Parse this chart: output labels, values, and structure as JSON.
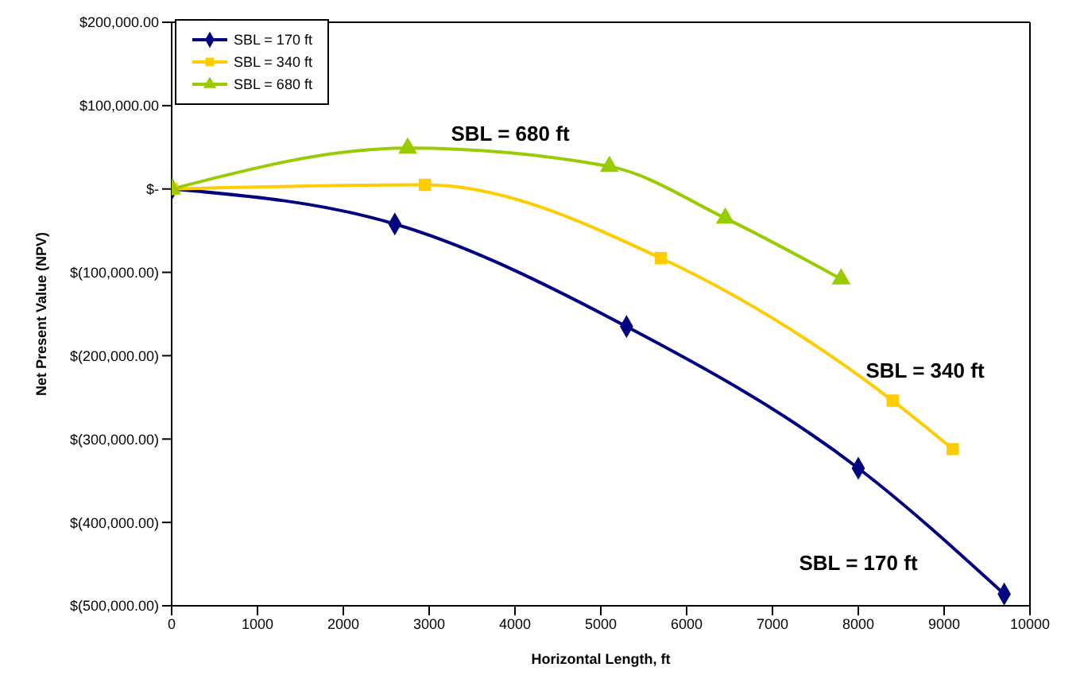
{
  "chart_data": {
    "type": "line",
    "xlabel": "Horizontal Length, ft",
    "ylabel": "Net Present Value (NPV)",
    "series": [
      {
        "name": "SBL = 170 ft",
        "color": "#000080",
        "marker": "diamond",
        "x": [
          0,
          2600,
          5300,
          8000,
          9700
        ],
        "values": [
          0,
          -42000,
          -165000,
          -335000,
          -486000
        ]
      },
      {
        "name": "SBL = 340 ft",
        "color": "#ffcc00",
        "marker": "square",
        "x": [
          0,
          2950,
          5700,
          8400,
          9100
        ],
        "values": [
          0,
          5000,
          -83000,
          -254000,
          -312000
        ]
      },
      {
        "name": "SBL = 680 ft",
        "color": "#99cc00",
        "marker": "triangle",
        "x": [
          0,
          2750,
          5100,
          6450,
          7800
        ],
        "values": [
          0,
          49000,
          27000,
          -35000,
          -108000
        ]
      }
    ],
    "annotations": [
      "SBL = 680 ft",
      "SBL = 340 ft",
      "SBL = 170 ft"
    ],
    "xlim": [
      0,
      10000
    ],
    "xticks": [
      0,
      1000,
      2000,
      3000,
      4000,
      5000,
      6000,
      7000,
      8000,
      9000,
      10000
    ],
    "ylim": [
      -500000,
      200000
    ],
    "yticks": [
      {
        "value": -500000,
        "label": "$(500,000.00)"
      },
      {
        "value": -400000,
        "label": "$(400,000.00)"
      },
      {
        "value": -300000,
        "label": "$(300,000.00)"
      },
      {
        "value": -200000,
        "label": "$(200,000.00)"
      },
      {
        "value": -100000,
        "label": "$(100,000.00)"
      },
      {
        "value": 0,
        "label": "$-"
      },
      {
        "value": 100000,
        "label": "$100,000.00"
      },
      {
        "value": 200000,
        "label": "$200,000.00"
      }
    ],
    "grid": false,
    "legend": "top left"
  }
}
